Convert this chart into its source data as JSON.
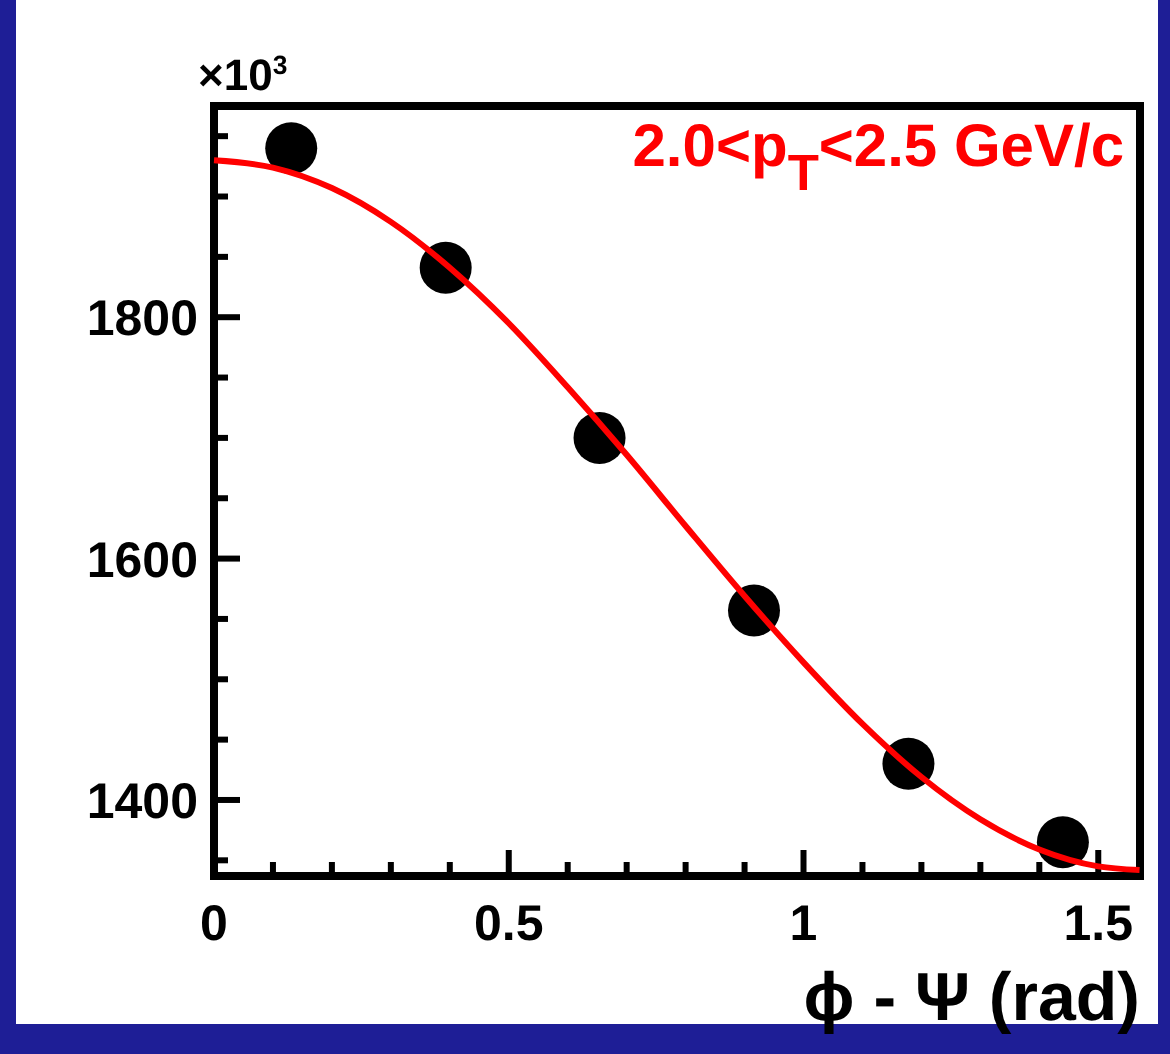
{
  "chart_data": {
    "type": "scatter",
    "xlabel": "ϕ - Ψ (rad)",
    "annotations": [
      "×10$^{3}$",
      "2.0<p$_{T}$<2.5 GeV/c"
    ],
    "xlim": [
      0,
      1.5708
    ],
    "ylim": [
      1337,
      1975
    ],
    "xticks": [
      0,
      {
        "value": 0.1,
        "label": null
      },
      {
        "value": 0.2,
        "label": null
      },
      {
        "value": 0.3,
        "label": null
      },
      {
        "value": 0.4,
        "label": null
      },
      0.5,
      {
        "value": 0.6,
        "label": null
      },
      {
        "value": 0.7,
        "label": null
      },
      {
        "value": 0.8,
        "label": null
      },
      {
        "value": 0.9,
        "label": null
      },
      1,
      {
        "value": 1.1,
        "label": null
      },
      {
        "value": 1.2,
        "label": null
      },
      {
        "value": 1.3,
        "label": null
      },
      {
        "value": 1.4,
        "label": null
      },
      1.5
    ],
    "yticks": [
      {
        "value": 1350,
        "label": null
      },
      1400,
      {
        "value": 1450,
        "label": null
      },
      {
        "value": 1500,
        "label": null
      },
      {
        "value": 1550,
        "label": null
      },
      1600,
      {
        "value": 1650,
        "label": null
      },
      {
        "value": 1700,
        "label": null
      },
      {
        "value": 1750,
        "label": null
      },
      1800,
      {
        "value": 1850,
        "label": null
      },
      {
        "value": 1900,
        "label": null
      },
      {
        "value": 1950,
        "label": null
      }
    ],
    "grid": false,
    "series": [
      {
        "color": "#000000",
        "marker": "circle",
        "x": [
          0.131,
          0.393,
          0.654,
          0.916,
          1.178,
          1.44
        ],
        "values": [
          1940,
          1841,
          1700,
          1557,
          1430,
          1365
        ]
      },
      {
        "type": "line",
        "color": "#ff0000",
        "marker": "none",
        "line_style": "solid",
        "x": [
          0,
          0.1,
          0.2,
          0.3,
          0.4,
          0.5,
          0.6,
          0.7,
          0.8,
          0.9,
          1.0,
          1.1,
          1.2,
          1.3,
          1.4,
          1.5,
          1.57
        ],
        "values": [
          1930,
          1924,
          1907,
          1879,
          1841,
          1795,
          1742,
          1686,
          1627,
          1569,
          1514,
          1463,
          1419,
          1384,
          1359,
          1345,
          1342
        ]
      }
    ]
  }
}
